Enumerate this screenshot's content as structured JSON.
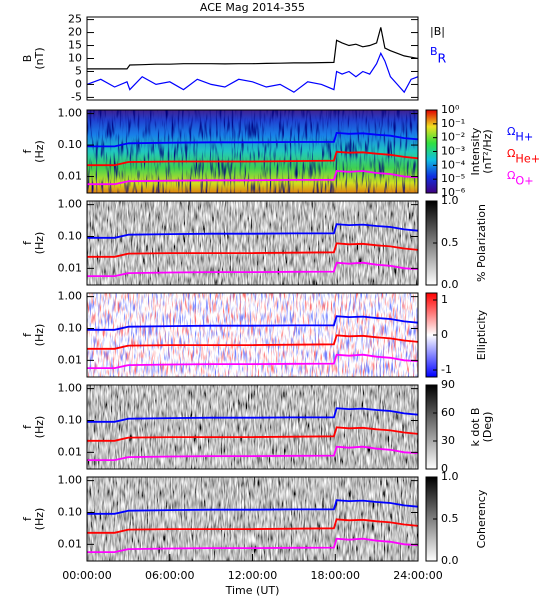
{
  "chart_data": [
    {
      "type": "line",
      "title": "ACE Mag 2014-355",
      "ylabel": [
        "B",
        "(nT)"
      ],
      "x": [
        0,
        1,
        2,
        2.9,
        3.1,
        4,
        5,
        6,
        7,
        8,
        9,
        10,
        11,
        12,
        13,
        14,
        15,
        16,
        17,
        17.9,
        18.1,
        18.5,
        19,
        19.5,
        20,
        20.5,
        21,
        21.3,
        21.6,
        22,
        22.5,
        23,
        23.5,
        24
      ],
      "xlim": [
        0,
        24
      ],
      "ylim": [
        -6,
        26
      ],
      "yticks": [
        25,
        20,
        15,
        10,
        5,
        0,
        -5
      ],
      "series": [
        {
          "name": "|B|",
          "color": "#000000",
          "values": [
            6,
            6,
            6,
            6,
            7.5,
            7.6,
            7.8,
            7.8,
            8,
            8,
            8,
            7.9,
            8,
            8,
            8.1,
            8.2,
            8.3,
            8.3,
            8.4,
            8.5,
            17,
            16,
            15,
            15.5,
            14.5,
            15,
            16,
            22,
            14,
            13,
            12,
            11,
            10.5,
            10
          ]
        },
        {
          "name": "BR",
          "color": "#0000ff",
          "values": [
            0,
            2,
            -1,
            1,
            -2,
            3,
            0,
            1,
            -2,
            2,
            0,
            -1,
            2,
            1,
            -1,
            0,
            -3,
            1,
            0,
            -2,
            5,
            4,
            5,
            3,
            5,
            4,
            8,
            12,
            9,
            3,
            0,
            -3,
            2,
            3
          ]
        }
      ]
    },
    {
      "type": "spectrogram",
      "ylabel": [
        "f",
        "(Hz)"
      ],
      "yscale": "log",
      "ylim": [
        0.003,
        1.3
      ],
      "yticks": [
        {
          "value": 1,
          "label": "1.00"
        },
        {
          "value": 0.1,
          "label": "0.10"
        },
        {
          "value": 0.01,
          "label": "0.01"
        }
      ],
      "x": [
        0,
        2,
        3,
        6,
        9,
        12,
        15,
        17.9,
        18.1,
        19,
        20,
        21,
        22,
        23,
        24
      ],
      "xlim": [
        0,
        24
      ],
      "colorbar": {
        "label": [
          "Intensity",
          "(nT²/Hz)"
        ],
        "scale": "log",
        "colormap": "rainbow",
        "lim": [
          1e-06,
          1
        ],
        "ticks": [
          {
            "value": 1,
            "label": "10⁰"
          },
          {
            "value": 0.1,
            "label": "10⁻¹"
          },
          {
            "value": 0.01,
            "label": "10⁻²"
          },
          {
            "value": 0.001,
            "label": "10⁻³"
          },
          {
            "value": 0.0001,
            "label": "10⁻⁴"
          },
          {
            "value": 1e-05,
            "label": "10⁻⁵"
          },
          {
            "value": 1e-06,
            "label": "10⁻⁶"
          }
        ]
      },
      "series": [
        {
          "name": "ΩH+",
          "color": "#0000ff",
          "values": [
            0.091,
            0.091,
            0.114,
            0.119,
            0.122,
            0.122,
            0.125,
            0.126,
            0.243,
            0.228,
            0.236,
            0.213,
            0.198,
            0.167,
            0.152
          ]
        },
        {
          "name": "ΩHe+",
          "color": "#ff0000",
          "values": [
            0.023,
            0.023,
            0.029,
            0.03,
            0.03,
            0.03,
            0.031,
            0.032,
            0.061,
            0.057,
            0.059,
            0.053,
            0.049,
            0.042,
            0.038
          ]
        },
        {
          "name": "ΩO+",
          "color": "#ff00ff",
          "values": [
            0.0057,
            0.0057,
            0.0071,
            0.0074,
            0.0076,
            0.0076,
            0.0078,
            0.0079,
            0.015,
            0.014,
            0.015,
            0.013,
            0.012,
            0.01,
            0.0095
          ]
        }
      ]
    },
    {
      "type": "spectrogram",
      "ylabel": [
        "f",
        "(Hz)"
      ],
      "yscale": "log",
      "ylim": [
        0.003,
        1.3
      ],
      "yticks": [
        {
          "value": 1,
          "label": "1.00"
        },
        {
          "value": 0.1,
          "label": "0.10"
        },
        {
          "value": 0.01,
          "label": "0.01"
        }
      ],
      "x": [
        0,
        2,
        3,
        6,
        9,
        12,
        15,
        17.9,
        18.1,
        19,
        20,
        21,
        22,
        23,
        24
      ],
      "xlim": [
        0,
        24
      ],
      "colorbar": {
        "label": [
          "% Polarization"
        ],
        "scale": "linear",
        "colormap": "gray",
        "lim": [
          0,
          1
        ],
        "ticks": [
          {
            "value": 1,
            "label": "1.0"
          },
          {
            "value": 0.5,
            "label": "0.5"
          },
          {
            "value": 0,
            "label": "0.0"
          }
        ]
      },
      "series": [
        {
          "color": "#0000ff",
          "values": [
            0.091,
            0.091,
            0.114,
            0.119,
            0.122,
            0.122,
            0.125,
            0.126,
            0.243,
            0.228,
            0.236,
            0.213,
            0.198,
            0.167,
            0.152
          ]
        },
        {
          "color": "#ff0000",
          "values": [
            0.023,
            0.023,
            0.029,
            0.03,
            0.03,
            0.03,
            0.031,
            0.032,
            0.061,
            0.057,
            0.059,
            0.053,
            0.049,
            0.042,
            0.038
          ]
        },
        {
          "color": "#ff00ff",
          "values": [
            0.0057,
            0.0057,
            0.0071,
            0.0074,
            0.0076,
            0.0076,
            0.0078,
            0.0079,
            0.015,
            0.014,
            0.015,
            0.013,
            0.012,
            0.01,
            0.0095
          ]
        }
      ]
    },
    {
      "type": "spectrogram",
      "ylabel": [
        "f",
        "(Hz)"
      ],
      "yscale": "log",
      "ylim": [
        0.003,
        1.3
      ],
      "yticks": [
        {
          "value": 1,
          "label": "1.00"
        },
        {
          "value": 0.1,
          "label": "0.10"
        },
        {
          "value": 0.01,
          "label": "0.01"
        }
      ],
      "x": [
        0,
        2,
        3,
        6,
        9,
        12,
        15,
        17.9,
        18.1,
        19,
        20,
        21,
        22,
        23,
        24
      ],
      "xlim": [
        0,
        24
      ],
      "colorbar": {
        "label": [
          "Ellipticity"
        ],
        "scale": "linear",
        "colormap": "bwr",
        "lim": [
          -1.2,
          1.2
        ],
        "ticks": [
          1,
          0,
          -1
        ]
      },
      "series": [
        {
          "color": "#0000ff",
          "values": [
            0.091,
            0.091,
            0.114,
            0.119,
            0.122,
            0.122,
            0.125,
            0.126,
            0.243,
            0.228,
            0.236,
            0.213,
            0.198,
            0.167,
            0.152
          ]
        },
        {
          "color": "#ff0000",
          "values": [
            0.023,
            0.023,
            0.029,
            0.03,
            0.03,
            0.03,
            0.031,
            0.032,
            0.061,
            0.057,
            0.059,
            0.053,
            0.049,
            0.042,
            0.038
          ]
        },
        {
          "color": "#ff00ff",
          "values": [
            0.0057,
            0.0057,
            0.0071,
            0.0074,
            0.0076,
            0.0076,
            0.0078,
            0.0079,
            0.015,
            0.014,
            0.015,
            0.013,
            0.012,
            0.01,
            0.0095
          ]
        }
      ]
    },
    {
      "type": "spectrogram",
      "ylabel": [
        "f",
        "(Hz)"
      ],
      "yscale": "log",
      "ylim": [
        0.003,
        1.3
      ],
      "yticks": [
        {
          "value": 1,
          "label": "1.00"
        },
        {
          "value": 0.1,
          "label": "0.10"
        },
        {
          "value": 0.01,
          "label": "0.01"
        }
      ],
      "x": [
        0,
        2,
        3,
        6,
        9,
        12,
        15,
        17.9,
        18.1,
        19,
        20,
        21,
        22,
        23,
        24
      ],
      "xlim": [
        0,
        24
      ],
      "colorbar": {
        "label": [
          "k dot B",
          "(Deg)"
        ],
        "scale": "linear",
        "colormap": "gray",
        "lim": [
          0,
          90
        ],
        "ticks": [
          90,
          60,
          30,
          0
        ]
      },
      "series": [
        {
          "color": "#0000ff",
          "values": [
            0.091,
            0.091,
            0.114,
            0.119,
            0.122,
            0.122,
            0.125,
            0.126,
            0.243,
            0.228,
            0.236,
            0.213,
            0.198,
            0.167,
            0.152
          ]
        },
        {
          "color": "#ff0000",
          "values": [
            0.023,
            0.023,
            0.029,
            0.03,
            0.03,
            0.03,
            0.031,
            0.032,
            0.061,
            0.057,
            0.059,
            0.053,
            0.049,
            0.042,
            0.038
          ]
        },
        {
          "color": "#ff00ff",
          "values": [
            0.0057,
            0.0057,
            0.0071,
            0.0074,
            0.0076,
            0.0076,
            0.0078,
            0.0079,
            0.015,
            0.014,
            0.015,
            0.013,
            0.012,
            0.01,
            0.0095
          ]
        }
      ]
    },
    {
      "type": "spectrogram",
      "ylabel": [
        "f",
        "(Hz)"
      ],
      "yscale": "log",
      "ylim": [
        0.003,
        1.3
      ],
      "yticks": [
        {
          "value": 1,
          "label": "1.00"
        },
        {
          "value": 0.1,
          "label": "0.10"
        },
        {
          "value": 0.01,
          "label": "0.01"
        }
      ],
      "x": [
        0,
        2,
        3,
        6,
        9,
        12,
        15,
        17.9,
        18.1,
        19,
        20,
        21,
        22,
        23,
        24
      ],
      "xlim": [
        0,
        24
      ],
      "xticks": [
        {
          "value": 0,
          "label": "00:00:00"
        },
        {
          "value": 6,
          "label": "06:00:00"
        },
        {
          "value": 12,
          "label": "12:00:00"
        },
        {
          "value": 18,
          "label": "18:00:00"
        },
        {
          "value": 24,
          "label": "24:00:00"
        }
      ],
      "xlabel": "Time (UT)",
      "colorbar": {
        "label": [
          "Coherency"
        ],
        "scale": "linear",
        "colormap": "gray",
        "lim": [
          0,
          1
        ],
        "ticks": [
          {
            "value": 1,
            "label": "1.0"
          },
          {
            "value": 0.5,
            "label": "0.5"
          },
          {
            "value": 0,
            "label": "0.0"
          }
        ]
      },
      "series": [
        {
          "color": "#0000ff",
          "values": [
            0.091,
            0.091,
            0.114,
            0.119,
            0.122,
            0.122,
            0.125,
            0.126,
            0.243,
            0.228,
            0.236,
            0.213,
            0.198,
            0.167,
            0.152
          ]
        },
        {
          "color": "#ff0000",
          "values": [
            0.023,
            0.023,
            0.029,
            0.03,
            0.03,
            0.03,
            0.031,
            0.032,
            0.061,
            0.057,
            0.059,
            0.053,
            0.049,
            0.042,
            0.038
          ]
        },
        {
          "color": "#ff00ff",
          "values": [
            0.0057,
            0.0057,
            0.0071,
            0.0074,
            0.0076,
            0.0076,
            0.0078,
            0.0079,
            0.015,
            0.014,
            0.015,
            0.013,
            0.012,
            0.01,
            0.0095
          ]
        }
      ]
    }
  ]
}
